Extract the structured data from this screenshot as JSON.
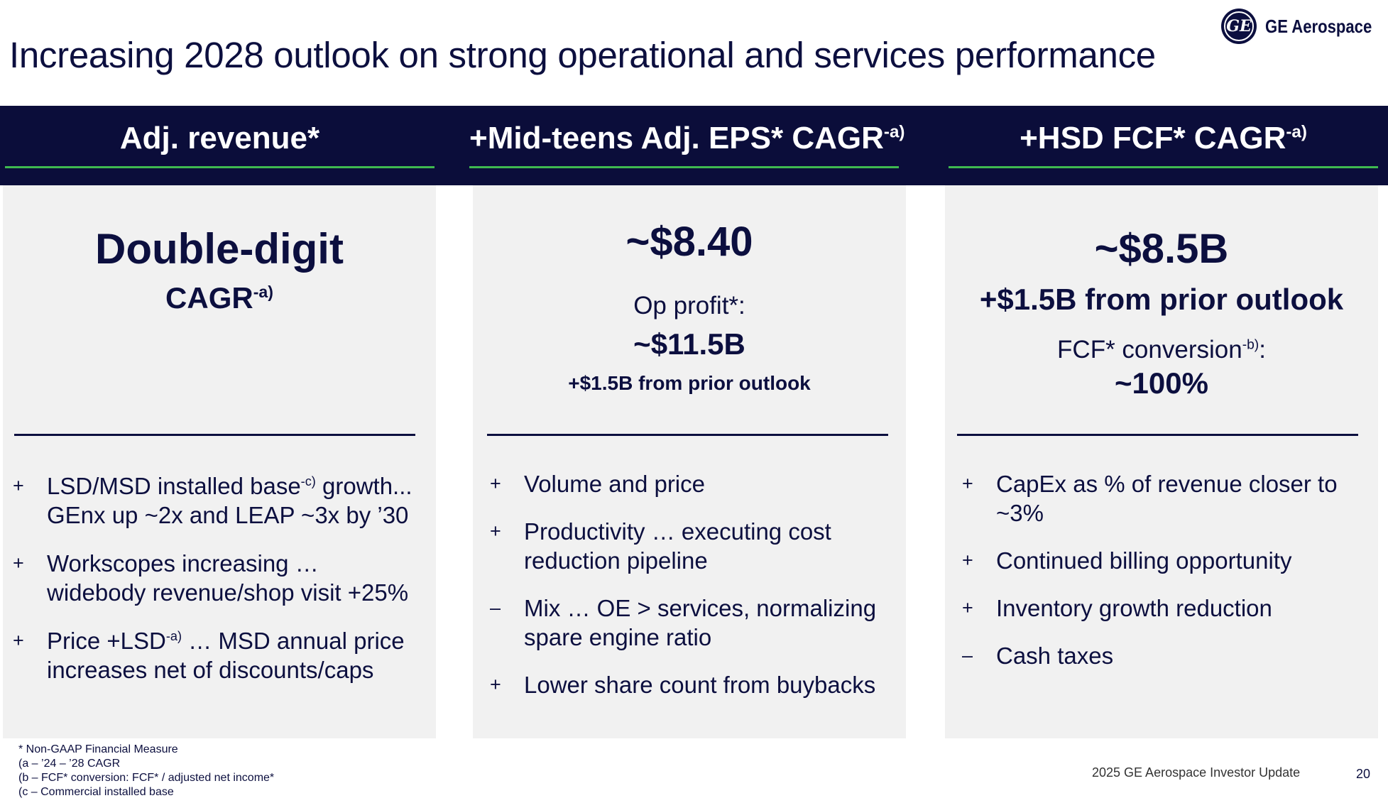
{
  "title": "Increasing 2028 outlook on strong operational and services performance",
  "logo": {
    "mark": "GE",
    "text": "GE Aerospace"
  },
  "columns": [
    {
      "header": "Adj. revenue*",
      "header_sup": "",
      "headline": "Double-digit",
      "sub": "CAGR",
      "sub_sup": "-a)",
      "bullets": [
        {
          "sign": "+",
          "text_a": "LSD/MSD installed base",
          "sup": "-c)",
          "text_b": " growth...",
          "text_c": "GEnx up ~2x and LEAP ~3x by ’30"
        },
        {
          "sign": "+",
          "text_a": "Workscopes increasing …",
          "sup": "",
          "text_b": "",
          "text_c": "widebody revenue/shop visit +25%"
        },
        {
          "sign": "+",
          "text_a": "Price +LSD",
          "sup": "-a)",
          "text_b": " … MSD annual price",
          "text_c": "increases net of discounts/caps"
        }
      ]
    },
    {
      "header": "+Mid-teens Adj. EPS* CAGR",
      "header_sup": "-a)",
      "headline": "~$8.40",
      "label": "Op profit*:",
      "value": "~$11.5B",
      "note": "+$1.5B from prior outlook",
      "bullets": [
        {
          "sign": "+",
          "line1": "Volume and price",
          "line2": ""
        },
        {
          "sign": "+",
          "line1": "Productivity … executing cost",
          "line2": "reduction pipeline"
        },
        {
          "sign": "–",
          "line1": "Mix … OE > services, normalizing",
          "line2": "spare engine ratio"
        },
        {
          "sign": "+",
          "line1": "Lower share count from buybacks",
          "line2": ""
        }
      ]
    },
    {
      "header": "+HSD FCF* CAGR",
      "header_sup": "-a)",
      "headline": "~$8.5B",
      "sub": "+$1.5B from prior outlook",
      "label": "FCF* conversion",
      "label_sup": "-b)",
      "label_end": ":",
      "value": "~100%",
      "bullets": [
        {
          "sign": "+",
          "line1": "CapEx as % of revenue closer to",
          "line2": "~3%"
        },
        {
          "sign": "+",
          "line1": "Continued billing opportunity",
          "line2": ""
        },
        {
          "sign": "+",
          "line1": "Inventory growth reduction",
          "line2": ""
        },
        {
          "sign": "–",
          "line1": "Cash taxes",
          "line2": ""
        }
      ]
    }
  ],
  "footnotes": [
    "* Non-GAAP Financial Measure",
    "(a – ’24 – ’28 CAGR",
    "(b – FCF* conversion: FCF* / adjusted net income*",
    "(c – Commercial installed base"
  ],
  "footer": {
    "title": "2025 GE Aerospace Investor Update",
    "page": "20"
  },
  "colors": {
    "navy": "#0b0d3a",
    "accent_green": "#3fb950",
    "panel": "#f1f1f1"
  }
}
